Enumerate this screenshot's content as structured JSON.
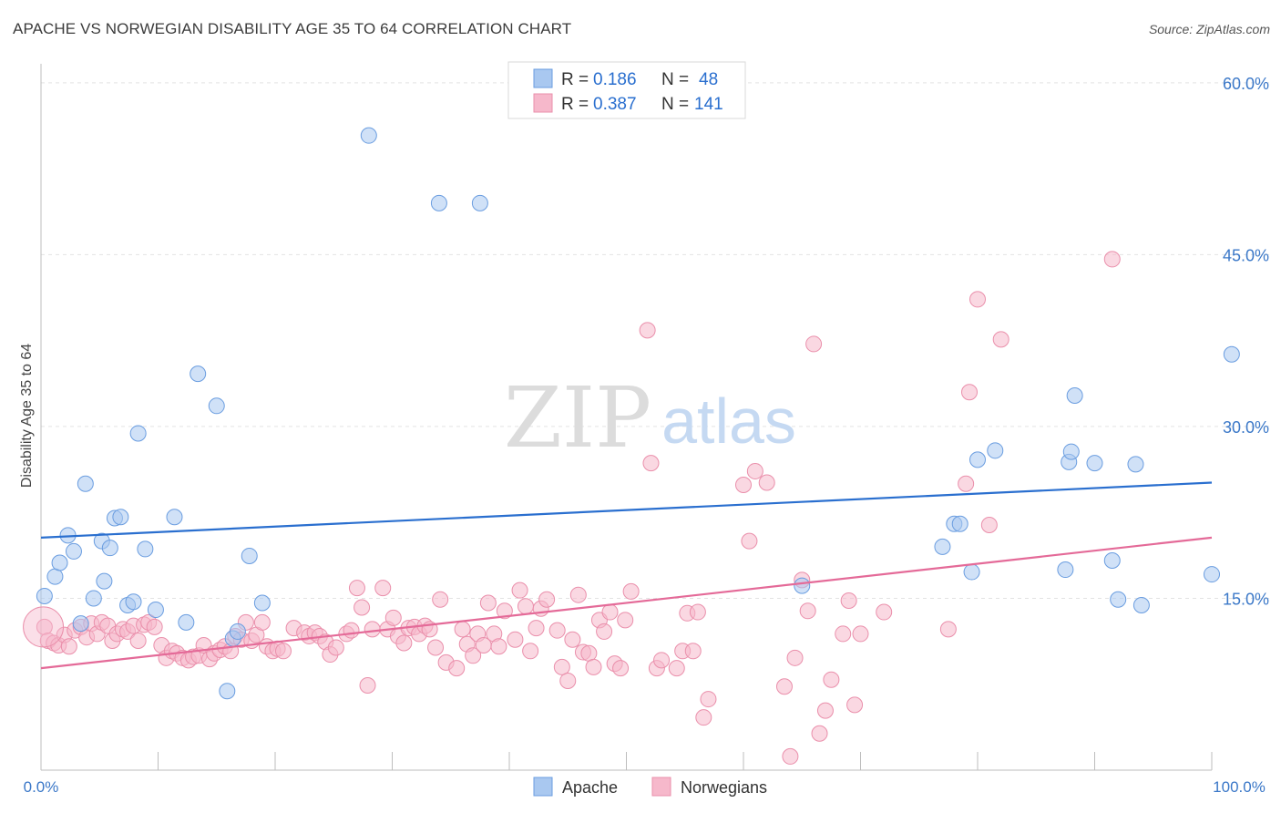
{
  "header": {
    "title": "APACHE VS NORWEGIAN DISABILITY AGE 35 TO 64 CORRELATION CHART",
    "source": "Source: ZipAtlas.com"
  },
  "watermark": {
    "zip": "ZIP",
    "atlas": "atlas"
  },
  "legend_top": {
    "rows": [
      {
        "r_label": "R =",
        "r_value": "0.186",
        "n_label": "N =",
        "n_value": "48"
      },
      {
        "r_label": "R =",
        "r_value": "0.387",
        "n_label": "N =",
        "n_value": "141"
      }
    ]
  },
  "legend_bottom": {
    "items": [
      "Apache",
      "Norwegians"
    ]
  },
  "colors": {
    "apache_fill": "#a9c8f0",
    "apache_stroke": "#6a9de0",
    "apache_line": "#2a6fcf",
    "norw_fill": "#f6b8cb",
    "norw_stroke": "#ea8fab",
    "norw_line": "#e46a98",
    "axis_text": "#3b78c8",
    "grid": "#e3e3e3"
  },
  "chart_data": {
    "type": "scatter",
    "title": "APACHE VS NORWEGIAN DISABILITY AGE 35 TO 64 CORRELATION CHART",
    "xlabel": "",
    "ylabel": "Disability Age 35 to 64",
    "xlim": [
      0,
      100
    ],
    "ylim": [
      0,
      61.5
    ],
    "x_tick_labels": [
      "0.0%",
      "100.0%"
    ],
    "y_ticks": [
      15,
      30,
      45,
      60
    ],
    "y_tick_labels": [
      "15.0%",
      "30.0%",
      "45.0%",
      "60.0%"
    ],
    "grid": "horizontal dashed",
    "legend_placement": "top-center and bottom",
    "series": [
      {
        "name": "Apache",
        "R": 0.186,
        "N": 48,
        "trend": {
          "x": [
            0,
            100
          ],
          "y": [
            20.3,
            25.1
          ]
        },
        "points": [
          [
            0.3,
            15.2
          ],
          [
            1.2,
            16.9
          ],
          [
            1.6,
            18.1
          ],
          [
            2.3,
            20.5
          ],
          [
            2.8,
            19.1
          ],
          [
            3.4,
            12.8
          ],
          [
            3.8,
            25.0
          ],
          [
            4.5,
            15.0
          ],
          [
            5.2,
            20.0
          ],
          [
            5.4,
            16.5
          ],
          [
            5.9,
            19.4
          ],
          [
            6.3,
            22.0
          ],
          [
            6.8,
            22.1
          ],
          [
            7.4,
            14.4
          ],
          [
            7.9,
            14.7
          ],
          [
            8.3,
            29.4
          ],
          [
            8.9,
            19.3
          ],
          [
            9.8,
            14.0
          ],
          [
            11.4,
            22.1
          ],
          [
            12.4,
            12.9
          ],
          [
            13.4,
            34.6
          ],
          [
            15.0,
            31.8
          ],
          [
            15.9,
            6.9
          ],
          [
            16.4,
            11.5
          ],
          [
            16.8,
            12.1
          ],
          [
            17.8,
            18.7
          ],
          [
            18.9,
            14.6
          ],
          [
            28.0,
            55.4
          ],
          [
            34.0,
            49.5
          ],
          [
            37.5,
            49.5
          ],
          [
            65.0,
            16.1
          ],
          [
            77.0,
            19.5
          ],
          [
            78.0,
            21.5
          ],
          [
            78.5,
            21.5
          ],
          [
            79.5,
            17.3
          ],
          [
            80.0,
            27.1
          ],
          [
            81.5,
            27.9
          ],
          [
            87.5,
            17.5
          ],
          [
            87.8,
            26.9
          ],
          [
            88.0,
            27.8
          ],
          [
            88.3,
            32.7
          ],
          [
            90.0,
            26.8
          ],
          [
            91.5,
            18.3
          ],
          [
            92.0,
            14.9
          ],
          [
            93.5,
            26.7
          ],
          [
            94.0,
            14.4
          ],
          [
            100.0,
            17.1
          ],
          [
            101.7,
            36.3
          ]
        ]
      },
      {
        "name": "Norwegians",
        "R": 0.387,
        "N": 141,
        "trend": {
          "x": [
            0,
            100
          ],
          "y": [
            8.9,
            20.3
          ]
        },
        "points": [
          [
            0.3,
            12.5
          ],
          [
            0.6,
            11.3
          ],
          [
            1.1,
            11.1
          ],
          [
            1.5,
            10.9
          ],
          [
            2.0,
            11.8
          ],
          [
            2.4,
            10.8
          ],
          [
            2.9,
            12.2
          ],
          [
            3.4,
            12.5
          ],
          [
            3.9,
            11.6
          ],
          [
            4.3,
            12.8
          ],
          [
            4.8,
            11.9
          ],
          [
            5.2,
            12.9
          ],
          [
            5.7,
            12.6
          ],
          [
            6.1,
            11.3
          ],
          [
            6.5,
            11.9
          ],
          [
            7.0,
            12.3
          ],
          [
            7.4,
            12.1
          ],
          [
            7.9,
            12.6
          ],
          [
            8.3,
            11.3
          ],
          [
            8.8,
            12.7
          ],
          [
            9.2,
            12.9
          ],
          [
            9.7,
            12.5
          ],
          [
            10.3,
            10.9
          ],
          [
            10.7,
            9.8
          ],
          [
            11.2,
            10.4
          ],
          [
            11.6,
            10.2
          ],
          [
            12.1,
            9.8
          ],
          [
            12.6,
            9.6
          ],
          [
            13.0,
            9.9
          ],
          [
            13.5,
            10.0
          ],
          [
            13.9,
            10.9
          ],
          [
            14.4,
            9.7
          ],
          [
            14.8,
            10.2
          ],
          [
            15.3,
            10.5
          ],
          [
            15.7,
            10.8
          ],
          [
            16.2,
            10.4
          ],
          [
            16.6,
            11.7
          ],
          [
            17.1,
            11.4
          ],
          [
            17.5,
            12.9
          ],
          [
            18.0,
            11.3
          ],
          [
            18.4,
            11.8
          ],
          [
            18.9,
            12.9
          ],
          [
            19.3,
            10.8
          ],
          [
            19.8,
            10.4
          ],
          [
            20.2,
            10.6
          ],
          [
            20.7,
            10.4
          ],
          [
            21.6,
            12.4
          ],
          [
            22.5,
            12.0
          ],
          [
            22.9,
            11.7
          ],
          [
            23.4,
            12.0
          ],
          [
            23.8,
            11.7
          ],
          [
            24.3,
            11.2
          ],
          [
            24.7,
            10.1
          ],
          [
            25.2,
            10.7
          ],
          [
            26.1,
            11.9
          ],
          [
            26.5,
            12.2
          ],
          [
            27.0,
            15.9
          ],
          [
            27.4,
            14.2
          ],
          [
            27.9,
            7.4
          ],
          [
            28.3,
            12.3
          ],
          [
            29.2,
            15.9
          ],
          [
            29.6,
            12.3
          ],
          [
            30.1,
            13.3
          ],
          [
            30.5,
            11.7
          ],
          [
            31.0,
            11.1
          ],
          [
            31.4,
            12.4
          ],
          [
            31.9,
            12.5
          ],
          [
            32.3,
            11.9
          ],
          [
            32.8,
            12.6
          ],
          [
            33.2,
            12.3
          ],
          [
            33.7,
            10.7
          ],
          [
            34.1,
            14.9
          ],
          [
            34.6,
            9.4
          ],
          [
            35.5,
            8.9
          ],
          [
            36.0,
            12.3
          ],
          [
            36.4,
            11.0
          ],
          [
            36.9,
            10.0
          ],
          [
            37.3,
            11.9
          ],
          [
            37.8,
            10.9
          ],
          [
            38.2,
            14.6
          ],
          [
            38.7,
            11.9
          ],
          [
            39.1,
            10.8
          ],
          [
            39.6,
            13.9
          ],
          [
            40.5,
            11.4
          ],
          [
            40.9,
            15.7
          ],
          [
            41.4,
            14.3
          ],
          [
            41.8,
            10.4
          ],
          [
            42.3,
            12.4
          ],
          [
            42.7,
            14.1
          ],
          [
            43.2,
            14.9
          ],
          [
            44.1,
            12.2
          ],
          [
            44.5,
            9.0
          ],
          [
            45.0,
            7.8
          ],
          [
            45.4,
            11.4
          ],
          [
            45.9,
            15.3
          ],
          [
            46.3,
            10.3
          ],
          [
            46.8,
            10.2
          ],
          [
            47.2,
            9.0
          ],
          [
            47.7,
            13.1
          ],
          [
            48.1,
            12.1
          ],
          [
            48.6,
            13.8
          ],
          [
            49.0,
            9.3
          ],
          [
            49.5,
            8.9
          ],
          [
            49.9,
            13.1
          ],
          [
            50.4,
            15.6
          ],
          [
            51.8,
            38.4
          ],
          [
            52.1,
            26.8
          ],
          [
            52.6,
            8.9
          ],
          [
            53.0,
            9.6
          ],
          [
            54.3,
            8.9
          ],
          [
            54.8,
            10.4
          ],
          [
            55.2,
            13.7
          ],
          [
            55.7,
            10.4
          ],
          [
            56.1,
            13.8
          ],
          [
            56.6,
            4.6
          ],
          [
            57.0,
            6.2
          ],
          [
            60.0,
            24.9
          ],
          [
            60.5,
            20.0
          ],
          [
            61.0,
            26.1
          ],
          [
            62.0,
            25.1
          ],
          [
            63.5,
            7.3
          ],
          [
            64.0,
            1.2
          ],
          [
            64.4,
            9.8
          ],
          [
            65.0,
            16.6
          ],
          [
            65.5,
            13.9
          ],
          [
            66.0,
            37.2
          ],
          [
            66.5,
            3.2
          ],
          [
            67.0,
            5.2
          ],
          [
            67.5,
            7.9
          ],
          [
            68.5,
            11.9
          ],
          [
            69.0,
            14.8
          ],
          [
            69.5,
            5.7
          ],
          [
            70.0,
            11.9
          ],
          [
            72.0,
            13.8
          ],
          [
            77.5,
            12.3
          ],
          [
            79.0,
            25.0
          ],
          [
            79.3,
            33.0
          ],
          [
            80.0,
            41.1
          ],
          [
            81.0,
            21.4
          ],
          [
            82.0,
            37.6
          ],
          [
            91.5,
            44.6
          ]
        ]
      }
    ]
  }
}
